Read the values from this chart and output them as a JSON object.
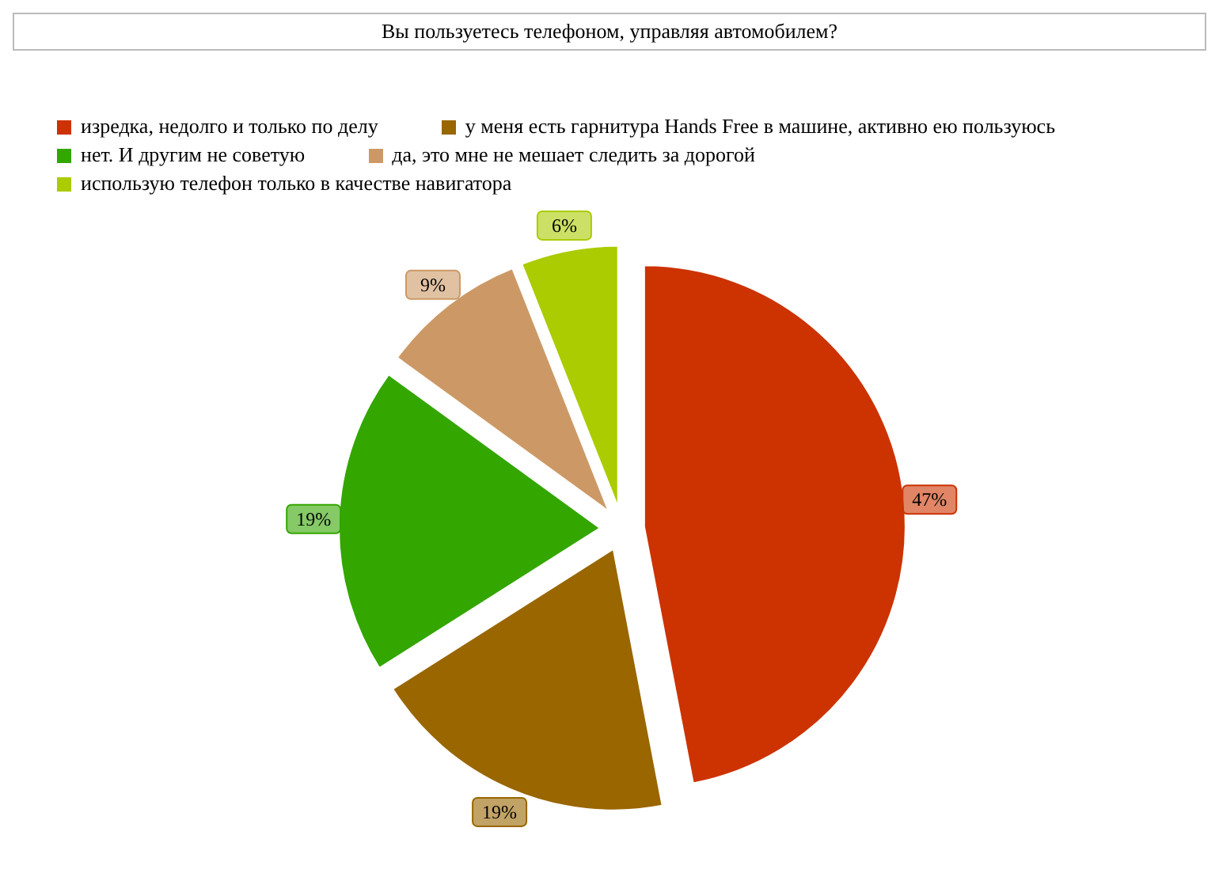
{
  "chart_data": {
    "type": "pie",
    "title": "Вы пользуетесь телефоном, управляя автомобилем?",
    "categories": [
      "изредка, недолго и только по делу",
      "у меня есть гарнитура Hands Free в машине, активно ею пользуюсь",
      "нет. И другим не советую",
      "да, это мне не мешает следить за дорогой",
      "использую телефон только в качестве навигатора"
    ],
    "values": [
      47,
      19,
      19,
      9,
      6
    ],
    "value_labels": [
      "47%",
      "19%",
      "19%",
      "9%",
      "6%"
    ],
    "colors": [
      "#cc3300",
      "#996600",
      "#33a600",
      "#cc9966",
      "#aacc00"
    ],
    "legend": "top left"
  }
}
